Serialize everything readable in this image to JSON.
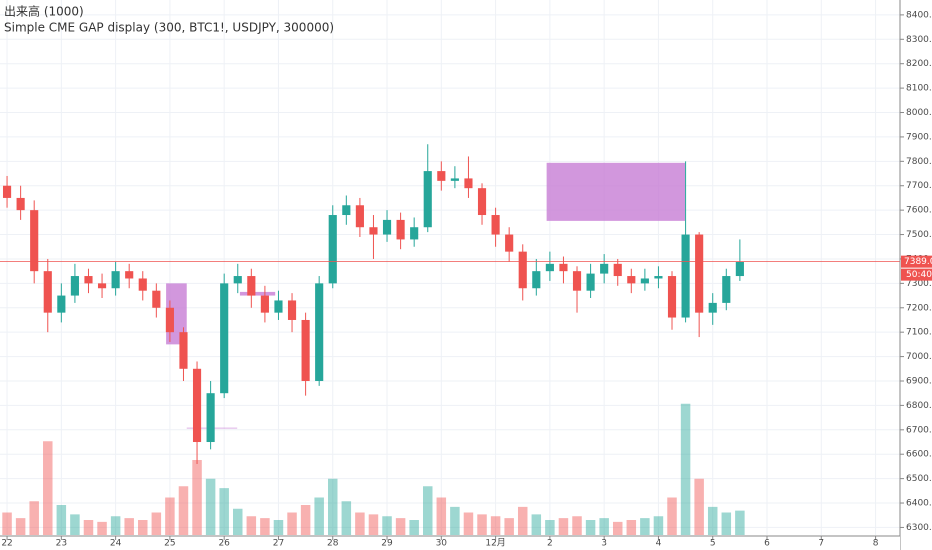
{
  "chart_data": {
    "type": "candlestick",
    "title": "出来高 (1000)",
    "subtitle": "Simple CME GAP display (300, BTC1!, USDJPY, 300000)",
    "x": [
      0,
      0.25,
      0.5,
      0.75,
      1,
      1.25,
      1.5,
      1.75,
      2,
      2.25,
      2.5,
      2.75,
      3,
      3.25,
      3.5,
      3.75,
      4,
      4.25,
      4.5,
      4.75,
      5,
      5.25,
      5.5,
      5.75,
      6,
      6.25,
      6.5,
      6.75,
      7,
      7.25,
      7.5,
      7.75,
      8,
      8.25,
      8.5,
      8.75,
      9,
      9.25,
      9.5,
      9.75,
      10,
      10.25,
      10.5,
      10.75,
      11,
      11.25,
      11.5,
      11.75,
      12,
      12.25,
      12.5,
      12.75,
      13,
      13.25,
      13.5
    ],
    "open": [
      7700,
      7650,
      7600,
      7350,
      7180,
      7250,
      7330,
      7300,
      7280,
      7350,
      7320,
      7270,
      7200,
      7100,
      6950,
      6650,
      6850,
      7300,
      7330,
      7250,
      7180,
      7230,
      7150,
      6900,
      7300,
      7580,
      7620,
      7530,
      7500,
      7560,
      7480,
      7530,
      7760,
      7720,
      7730,
      7690,
      7580,
      7500,
      7430,
      7280,
      7350,
      7380,
      7350,
      7270,
      7340,
      7380,
      7330,
      7300,
      7320,
      7330,
      7160,
      7500,
      7180,
      7220,
      7330
    ],
    "high": [
      7740,
      7700,
      7640,
      7400,
      7300,
      7380,
      7360,
      7340,
      7390,
      7380,
      7350,
      7300,
      7230,
      7120,
      6980,
      6900,
      7340,
      7380,
      7360,
      7290,
      7270,
      7260,
      7180,
      7330,
      7620,
      7660,
      7650,
      7580,
      7600,
      7590,
      7570,
      7870,
      7800,
      7780,
      7820,
      7710,
      7610,
      7530,
      7460,
      7400,
      7430,
      7410,
      7370,
      7380,
      7420,
      7400,
      7360,
      7360,
      7370,
      7350,
      7800,
      7510,
      7260,
      7360,
      7480
    ],
    "low": [
      7610,
      7560,
      7300,
      7100,
      7140,
      7220,
      7260,
      7240,
      7250,
      7280,
      7230,
      7160,
      7060,
      6900,
      6560,
      6620,
      6830,
      7260,
      7200,
      7140,
      7150,
      7100,
      6840,
      6880,
      7280,
      7540,
      7490,
      7400,
      7470,
      7440,
      7450,
      7510,
      7680,
      7690,
      7650,
      7540,
      7450,
      7390,
      7230,
      7250,
      7310,
      7300,
      7180,
      7240,
      7300,
      7290,
      7260,
      7270,
      7280,
      7110,
      7140,
      7080,
      7130,
      7190,
      7310
    ],
    "close": [
      7650,
      7600,
      7350,
      7180,
      7250,
      7330,
      7300,
      7280,
      7350,
      7320,
      7270,
      7200,
      7100,
      6950,
      6650,
      6850,
      7300,
      7330,
      7250,
      7180,
      7230,
      7150,
      6900,
      7300,
      7580,
      7620,
      7530,
      7500,
      7560,
      7480,
      7530,
      7760,
      7720,
      7730,
      7690,
      7580,
      7500,
      7430,
      7280,
      7350,
      7380,
      7350,
      7270,
      7340,
      7380,
      7330,
      7300,
      7320,
      7330,
      7160,
      7500,
      7180,
      7220,
      7330,
      7389
    ],
    "volume": [
      120,
      90,
      180,
      500,
      160,
      110,
      80,
      70,
      100,
      90,
      80,
      120,
      200,
      260,
      400,
      300,
      250,
      140,
      100,
      90,
      80,
      120,
      160,
      200,
      300,
      180,
      120,
      110,
      100,
      90,
      80,
      260,
      200,
      150,
      120,
      110,
      100,
      90,
      150,
      110,
      80,
      90,
      100,
      80,
      90,
      70,
      80,
      90,
      100,
      200,
      700,
      300,
      150,
      120,
      130
    ],
    "volume_lim": [
      0,
      800
    ],
    "up_color": "#26a69a",
    "down_color": "#ef5350",
    "gap_color": "#c77dd4",
    "gaps": [
      {
        "x0": 2.93,
        "x1": 3.31,
        "top": 7300,
        "bottom": 7050
      },
      {
        "x0": 9.94,
        "x1": 12.49,
        "top": 7794,
        "bottom": 7556
      },
      {
        "x0": 4.29,
        "x1": 4.94,
        "top": 7265,
        "bottom": 7250
      }
    ],
    "gap_lines": [
      {
        "x0": 3.31,
        "x1": 4.24,
        "value": 6707
      }
    ],
    "last_price": {
      "value": 7389,
      "label": "7389.0"
    },
    "countdown": "50:40",
    "grid": true,
    "xlim": [
      -0.13,
      16.45
    ],
    "xticks": [
      {
        "value": 0,
        "label": "22"
      },
      {
        "value": 1,
        "label": "23"
      },
      {
        "value": 2,
        "label": "24"
      },
      {
        "value": 3,
        "label": "25"
      },
      {
        "value": 4,
        "label": "26"
      },
      {
        "value": 5,
        "label": "27"
      },
      {
        "value": 6,
        "label": "28"
      },
      {
        "value": 7,
        "label": "29"
      },
      {
        "value": 8,
        "label": "30"
      },
      {
        "value": 9,
        "label": "12月"
      },
      {
        "value": 10,
        "label": "2"
      },
      {
        "value": 11,
        "label": "3"
      },
      {
        "value": 12,
        "label": "4"
      },
      {
        "value": 13,
        "label": "5"
      },
      {
        "value": 14,
        "label": "6"
      },
      {
        "value": 15,
        "label": "7"
      },
      {
        "value": 16,
        "label": "8"
      }
    ],
    "ylim": [
      6269,
      8461
    ],
    "yticks": [
      {
        "value": 6300,
        "label": "6300.0"
      },
      {
        "value": 6400,
        "label": "6400.0"
      },
      {
        "value": 6500,
        "label": "6500.0"
      },
      {
        "value": 6600,
        "label": "6600.0"
      },
      {
        "value": 6700,
        "label": "6700.0"
      },
      {
        "value": 6800,
        "label": "6800.0"
      },
      {
        "value": 6900,
        "label": "6900.0"
      },
      {
        "value": 7000,
        "label": "7000.0"
      },
      {
        "value": 7100,
        "label": "7100.0"
      },
      {
        "value": 7200,
        "label": "7200.0"
      },
      {
        "value": 7300,
        "label": "7300.0"
      },
      {
        "value": 7400,
        "label": "7400.0"
      },
      {
        "value": 7500,
        "label": "7500.0"
      },
      {
        "value": 7600,
        "label": "7600.0"
      },
      {
        "value": 7700,
        "label": "7700.0"
      },
      {
        "value": 7800,
        "label": "7800.0"
      },
      {
        "value": 7900,
        "label": "7900.0"
      },
      {
        "value": 8000,
        "label": "8000.0"
      },
      {
        "value": 8100,
        "label": "8100.0"
      },
      {
        "value": 8200,
        "label": "8200.0"
      },
      {
        "value": 8300,
        "label": "8300.0"
      },
      {
        "value": 8400,
        "label": "8400.0"
      }
    ]
  }
}
